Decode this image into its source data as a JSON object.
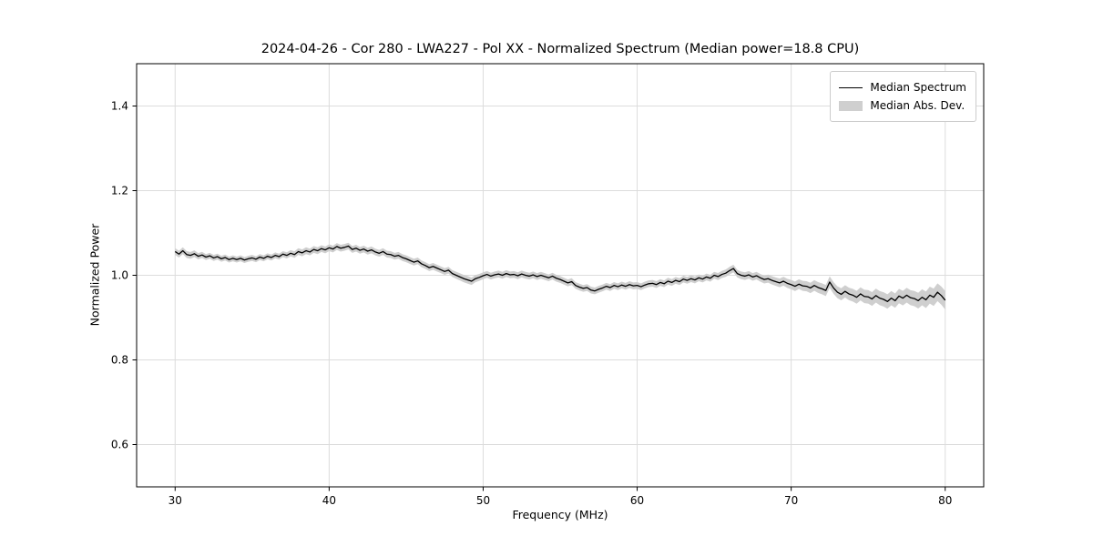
{
  "chart_data": {
    "type": "line",
    "title": "2024-04-26 - Cor 280 - LWA227 - Pol XX - Normalized Spectrum (Median power=18.8 CPU)",
    "xlabel": "Frequency (MHz)",
    "ylabel": "Normalized Power",
    "xlim": [
      27.5,
      82.5
    ],
    "ylim": [
      0.5,
      1.5
    ],
    "xticks": [
      30,
      40,
      50,
      60,
      70,
      80
    ],
    "yticks": [
      0.6,
      0.8,
      1.0,
      1.2,
      1.4
    ],
    "grid": true,
    "line_color": "#000000",
    "band_color": "#cfcfcf",
    "grid_color": "#dcdcdc",
    "legend": {
      "position": "upper-right",
      "entries": [
        {
          "label": "Median Spectrum",
          "type": "line",
          "color": "#000000"
        },
        {
          "label": "Median Abs. Dev.",
          "type": "patch",
          "color": "#cfcfcf"
        }
      ]
    },
    "series": [
      {
        "name": "Median Spectrum",
        "x_start": 30.0,
        "x_step": 0.25,
        "values": [
          1.056,
          1.05,
          1.058,
          1.049,
          1.047,
          1.051,
          1.045,
          1.048,
          1.043,
          1.046,
          1.041,
          1.044,
          1.039,
          1.042,
          1.037,
          1.04,
          1.037,
          1.04,
          1.036,
          1.039,
          1.041,
          1.038,
          1.043,
          1.04,
          1.045,
          1.042,
          1.047,
          1.044,
          1.05,
          1.047,
          1.052,
          1.049,
          1.056,
          1.053,
          1.058,
          1.055,
          1.061,
          1.058,
          1.063,
          1.06,
          1.065,
          1.062,
          1.068,
          1.064,
          1.066,
          1.069,
          1.061,
          1.064,
          1.059,
          1.062,
          1.057,
          1.06,
          1.055,
          1.052,
          1.056,
          1.05,
          1.049,
          1.045,
          1.047,
          1.042,
          1.039,
          1.035,
          1.031,
          1.034,
          1.027,
          1.023,
          1.018,
          1.021,
          1.017,
          1.013,
          1.009,
          1.012,
          1.004,
          1.0,
          0.996,
          0.992,
          0.989,
          0.986,
          0.992,
          0.995,
          0.999,
          1.002,
          0.998,
          1.001,
          1.003,
          1.0,
          1.004,
          1.001,
          1.002,
          0.999,
          1.003,
          1.0,
          0.998,
          1.001,
          0.997,
          1.0,
          0.997,
          0.994,
          0.998,
          0.993,
          0.99,
          0.986,
          0.982,
          0.985,
          0.976,
          0.972,
          0.969,
          0.971,
          0.965,
          0.963,
          0.967,
          0.97,
          0.974,
          0.971,
          0.976,
          0.973,
          0.977,
          0.974,
          0.978,
          0.975,
          0.976,
          0.973,
          0.977,
          0.98,
          0.981,
          0.978,
          0.983,
          0.98,
          0.986,
          0.983,
          0.988,
          0.985,
          0.991,
          0.988,
          0.992,
          0.989,
          0.994,
          0.991,
          0.996,
          0.993,
          1.0,
          0.997,
          1.002,
          1.005,
          1.011,
          1.016,
          1.004,
          1.0,
          0.998,
          1.001,
          0.996,
          0.999,
          0.994,
          0.99,
          0.992,
          0.988,
          0.985,
          0.982,
          0.986,
          0.981,
          0.978,
          0.974,
          0.979,
          0.975,
          0.974,
          0.97,
          0.976,
          0.971,
          0.968,
          0.964,
          0.984,
          0.97,
          0.96,
          0.955,
          0.962,
          0.956,
          0.953,
          0.948,
          0.956,
          0.95,
          0.949,
          0.944,
          0.952,
          0.946,
          0.943,
          0.938,
          0.946,
          0.94,
          0.951,
          0.946,
          0.953,
          0.947,
          0.945,
          0.94,
          0.948,
          0.942,
          0.953,
          0.948,
          0.96,
          0.952,
          0.941
        ]
      }
    ],
    "mad_band": {
      "name": "Median Abs. Dev.",
      "x_start": 30.0,
      "x_step": 1.0,
      "values": [
        0.008,
        0.008,
        0.007,
        0.007,
        0.007,
        0.007,
        0.007,
        0.007,
        0.008,
        0.008,
        0.008,
        0.008,
        0.008,
        0.008,
        0.008,
        0.008,
        0.008,
        0.008,
        0.008,
        0.009,
        0.008,
        0.008,
        0.008,
        0.008,
        0.008,
        0.008,
        0.008,
        0.008,
        0.008,
        0.008,
        0.008,
        0.008,
        0.008,
        0.008,
        0.008,
        0.008,
        0.009,
        0.009,
        0.009,
        0.01,
        0.011,
        0.012,
        0.013,
        0.014,
        0.015,
        0.016,
        0.017,
        0.017,
        0.018,
        0.02,
        0.022
      ]
    }
  }
}
